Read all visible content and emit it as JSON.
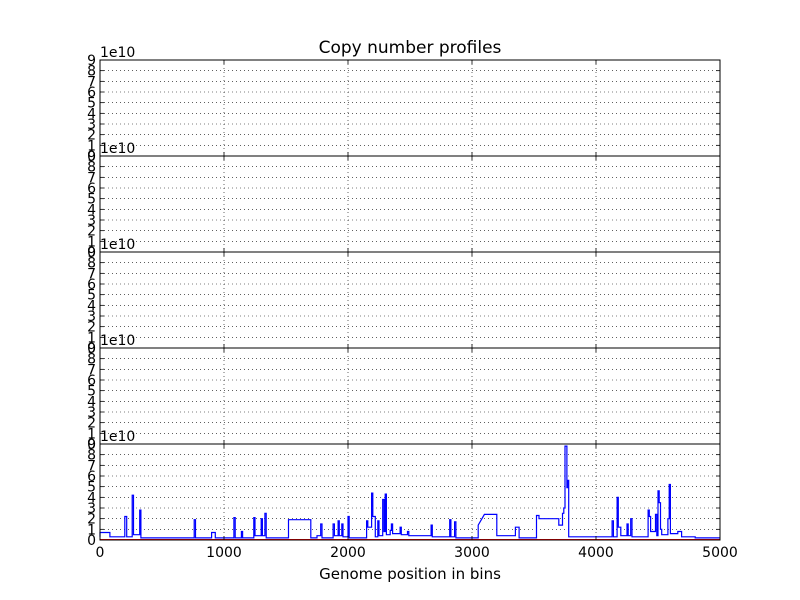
{
  "chart_data": {
    "type": "line",
    "title": "Copy number profiles",
    "xlabel": "Genome position in bins",
    "xlim": [
      0,
      5000
    ],
    "xticks": [
      "0",
      "1000",
      "2000",
      "3000",
      "4000",
      "5000"
    ],
    "ylim": [
      0,
      9
    ],
    "yticks": [
      "0",
      "1",
      "2",
      "3",
      "4",
      "5",
      "6",
      "7",
      "8",
      "9"
    ],
    "y_multiplier": "1e10",
    "grid": true,
    "panels": [
      {
        "series": []
      },
      {
        "series": []
      },
      {
        "series": []
      },
      {
        "series": []
      },
      {
        "series": [
          {
            "color": "#0000ff",
            "points": [
              [
                0,
                0.3
              ],
              [
                0,
                0.7
              ],
              [
                80,
                0.7
              ],
              [
                80,
                0.3
              ],
              [
                200,
                0.3
              ],
              [
                200,
                2.2
              ],
              [
                215,
                2.2
              ],
              [
                215,
                0.3
              ],
              [
                260,
                0.3
              ],
              [
                260,
                4.2
              ],
              [
                270,
                4.2
              ],
              [
                270,
                0.5
              ],
              [
                320,
                0.5
              ],
              [
                320,
                2.8
              ],
              [
                330,
                2.8
              ],
              [
                330,
                0.2
              ],
              [
                760,
                0.2
              ],
              [
                760,
                1.9
              ],
              [
                770,
                1.9
              ],
              [
                770,
                0.2
              ],
              [
                900,
                0.2
              ],
              [
                900,
                0.7
              ],
              [
                930,
                0.7
              ],
              [
                930,
                0.2
              ],
              [
                1080,
                0.2
              ],
              [
                1080,
                2.1
              ],
              [
                1090,
                2.1
              ],
              [
                1090,
                0.2
              ],
              [
                1140,
                0.2
              ],
              [
                1140,
                0.8
              ],
              [
                1150,
                0.8
              ],
              [
                1150,
                0.2
              ],
              [
                1240,
                0.2
              ],
              [
                1240,
                2.1
              ],
              [
                1250,
                2.1
              ],
              [
                1250,
                0.4
              ],
              [
                1300,
                0.4
              ],
              [
                1300,
                2.0
              ],
              [
                1310,
                2.0
              ],
              [
                1310,
                0.4
              ],
              [
                1330,
                0.4
              ],
              [
                1330,
                2.5
              ],
              [
                1340,
                2.5
              ],
              [
                1340,
                0.2
              ],
              [
                1520,
                0.2
              ],
              [
                1520,
                1.9
              ],
              [
                1700,
                1.9
              ],
              [
                1700,
                0.2
              ],
              [
                1750,
                0.2
              ],
              [
                1750,
                0.4
              ],
              [
                1780,
                0.4
              ],
              [
                1780,
                1.5
              ],
              [
                1790,
                1.5
              ],
              [
                1790,
                0.2
              ],
              [
                1880,
                0.2
              ],
              [
                1880,
                1.5
              ],
              [
                1890,
                1.5
              ],
              [
                1890,
                0.4
              ],
              [
                1920,
                0.4
              ],
              [
                1920,
                1.8
              ],
              [
                1930,
                1.8
              ],
              [
                1930,
                0.4
              ],
              [
                1950,
                0.4
              ],
              [
                1950,
                1.5
              ],
              [
                1960,
                1.5
              ],
              [
                1960,
                0.3
              ],
              [
                2000,
                0.3
              ],
              [
                2000,
                2.2
              ],
              [
                2010,
                2.2
              ],
              [
                2010,
                0.2
              ],
              [
                2150,
                0.2
              ],
              [
                2150,
                1.8
              ],
              [
                2160,
                1.8
              ],
              [
                2160,
                1.2
              ],
              [
                2190,
                1.2
              ],
              [
                2190,
                4.4
              ],
              [
                2200,
                4.4
              ],
              [
                2200,
                2.2
              ],
              [
                2220,
                2.2
              ],
              [
                2220,
                0.3
              ],
              [
                2240,
                0.3
              ],
              [
                2240,
                1.8
              ],
              [
                2250,
                1.8
              ],
              [
                2250,
                0.4
              ],
              [
                2280,
                0.4
              ],
              [
                2280,
                3.8
              ],
              [
                2290,
                3.8
              ],
              [
                2290,
                0.8
              ],
              [
                2300,
                0.8
              ],
              [
                2300,
                4.3
              ],
              [
                2310,
                4.3
              ],
              [
                2310,
                0.5
              ],
              [
                2340,
                0.5
              ],
              [
                2340,
                0.9
              ],
              [
                2350,
                0.9
              ],
              [
                2350,
                1.5
              ],
              [
                2360,
                1.5
              ],
              [
                2360,
                0.6
              ],
              [
                2420,
                0.6
              ],
              [
                2420,
                1.2
              ],
              [
                2430,
                1.2
              ],
              [
                2430,
                0.5
              ],
              [
                2480,
                0.5
              ],
              [
                2480,
                0.8
              ],
              [
                2490,
                0.8
              ],
              [
                2490,
                0.4
              ],
              [
                2670,
                0.4
              ],
              [
                2670,
                1.4
              ],
              [
                2680,
                1.4
              ],
              [
                2680,
                0.3
              ],
              [
                2820,
                0.3
              ],
              [
                2820,
                1.9
              ],
              [
                2830,
                1.9
              ],
              [
                2830,
                0.3
              ],
              [
                2860,
                0.3
              ],
              [
                2860,
                1.7
              ],
              [
                2870,
                1.7
              ],
              [
                2870,
                0.2
              ],
              [
                3050,
                0.2
              ],
              [
                3050,
                1.4
              ],
              [
                3100,
                2.4
              ],
              [
                3200,
                2.4
              ],
              [
                3200,
                0.4
              ],
              [
                3350,
                0.4
              ],
              [
                3350,
                1.2
              ],
              [
                3380,
                1.2
              ],
              [
                3380,
                0.2
              ],
              [
                3520,
                0.2
              ],
              [
                3520,
                2.3
              ],
              [
                3540,
                2.3
              ],
              [
                3540,
                2.0
              ],
              [
                3700,
                2.0
              ],
              [
                3700,
                1.4
              ],
              [
                3730,
                1.4
              ],
              [
                3730,
                2.5
              ],
              [
                3740,
                2.5
              ],
              [
                3740,
                3.0
              ],
              [
                3750,
                3.0
              ],
              [
                3750,
                8.8
              ],
              [
                3765,
                8.8
              ],
              [
                3765,
                4.9
              ],
              [
                3775,
                4.9
              ],
              [
                3775,
                5.6
              ],
              [
                3780,
                5.6
              ],
              [
                3780,
                0.3
              ],
              [
                4130,
                0.3
              ],
              [
                4130,
                1.8
              ],
              [
                4140,
                1.8
              ],
              [
                4140,
                0.3
              ],
              [
                4170,
                0.3
              ],
              [
                4170,
                4.0
              ],
              [
                4180,
                4.0
              ],
              [
                4180,
                1.2
              ],
              [
                4200,
                1.2
              ],
              [
                4200,
                0.4
              ],
              [
                4250,
                0.4
              ],
              [
                4250,
                1.5
              ],
              [
                4260,
                1.5
              ],
              [
                4260,
                0.4
              ],
              [
                4280,
                0.4
              ],
              [
                4280,
                2.0
              ],
              [
                4290,
                2.0
              ],
              [
                4290,
                0.3
              ],
              [
                4420,
                0.3
              ],
              [
                4420,
                2.8
              ],
              [
                4430,
                2.8
              ],
              [
                4430,
                2.2
              ],
              [
                4440,
                2.2
              ],
              [
                4440,
                0.8
              ],
              [
                4480,
                0.8
              ],
              [
                4480,
                2.4
              ],
              [
                4490,
                2.4
              ],
              [
                4490,
                0.4
              ],
              [
                4500,
                0.4
              ],
              [
                4500,
                4.6
              ],
              [
                4510,
                4.6
              ],
              [
                4510,
                3.5
              ],
              [
                4520,
                3.5
              ],
              [
                4520,
                1.0
              ],
              [
                4530,
                1.0
              ],
              [
                4530,
                0.5
              ],
              [
                4580,
                0.5
              ],
              [
                4580,
                2.0
              ],
              [
                4590,
                2.0
              ],
              [
                4590,
                5.2
              ],
              [
                4600,
                5.2
              ],
              [
                4600,
                0.6
              ],
              [
                4660,
                0.6
              ],
              [
                4660,
                0.8
              ],
              [
                4690,
                0.8
              ],
              [
                4690,
                0.3
              ],
              [
                4800,
                0.3
              ],
              [
                4800,
                0.2
              ],
              [
                5000,
                0.2
              ]
            ]
          },
          {
            "color": "#ff0000",
            "points": [
              [
                0,
                0.04
              ],
              [
                5000,
                0.04
              ]
            ]
          }
        ]
      }
    ]
  }
}
